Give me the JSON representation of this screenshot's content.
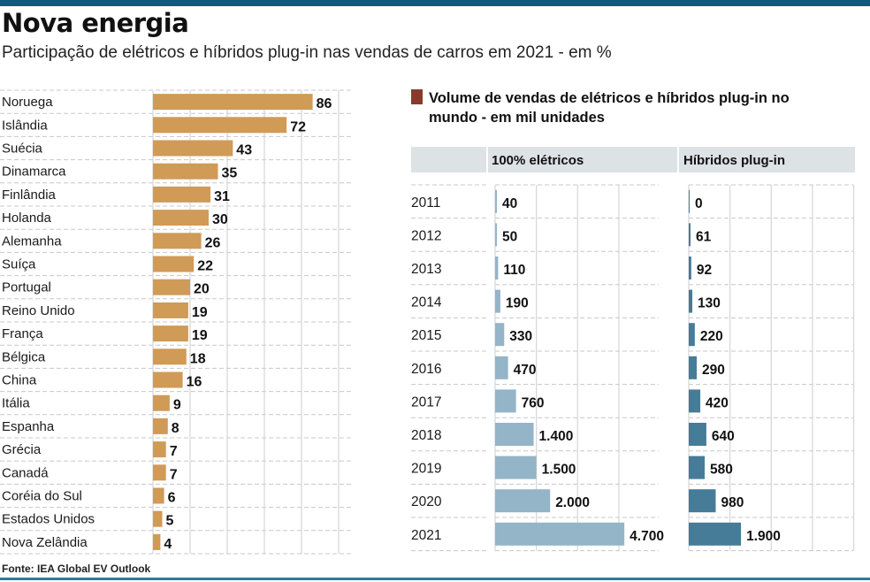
{
  "header": {
    "title": "Nova energia",
    "subtitle": "Participação de elétricos e híbridos plug-in nas vendas de carros em 2021 - em %"
  },
  "footer": {
    "source": "Fonte: IEA Global EV Outlook"
  },
  "colors": {
    "top_bar": "#0f5b78",
    "country_bar": "#d09a57",
    "electric_bar": "#94b4c8",
    "hybrid_bar": "#467c98",
    "header_bg": "#dde2e5",
    "title_marker": "#8a3a2a"
  },
  "chart_data": [
    {
      "type": "bar",
      "orientation": "horizontal",
      "title": "Participação de elétricos e híbridos plug-in nas vendas de carros em 2021 - em %",
      "categories": [
        "Noruega",
        "Islândia",
        "Suécia",
        "Dinamarca",
        "Finlândia",
        "Holanda",
        "Alemanha",
        "Suíça",
        "Portugal",
        "Reino Unido",
        "França",
        "Bélgica",
        "China",
        "Itália",
        "Espanha",
        "Grécia",
        "Canadá",
        "Coréia do Sul",
        "Estados Unidos",
        "Nova Zelândia"
      ],
      "values": [
        86,
        72,
        43,
        35,
        31,
        30,
        26,
        22,
        20,
        19,
        19,
        18,
        16,
        9,
        8,
        7,
        7,
        6,
        5,
        4
      ],
      "value_labels": [
        "86",
        "72",
        "43",
        "35",
        "31",
        "30",
        "26",
        "22",
        "20",
        "19",
        "19",
        "18",
        "16",
        "9",
        "8",
        "7",
        "7",
        "6",
        "5",
        "4"
      ],
      "xlim": [
        0,
        100
      ],
      "grid": true,
      "xlabel": "",
      "ylabel": ""
    },
    {
      "type": "bar",
      "orientation": "horizontal",
      "title": "Volume de vendas de elétricos e híbridos plug-in no mundo - em mil unidades",
      "categories": [
        "2011",
        "2012",
        "2013",
        "2014",
        "2015",
        "2016",
        "2017",
        "2018",
        "2019",
        "2020",
        "2021"
      ],
      "series": [
        {
          "name": "100% elétricos",
          "values": [
            40,
            50,
            110,
            190,
            330,
            470,
            760,
            1400,
            1500,
            2000,
            4700
          ],
          "value_labels": [
            "40",
            "50",
            "110",
            "190",
            "330",
            "470",
            "760",
            "1.400",
            "1.500",
            "2.000",
            "4.700"
          ]
        },
        {
          "name": "Híbridos plug-in",
          "values": [
            0,
            61,
            92,
            130,
            220,
            290,
            420,
            640,
            580,
            980,
            1900
          ],
          "value_labels": [
            "0",
            "61",
            "92",
            "130",
            "220",
            "290",
            "420",
            "640",
            "580",
            "980",
            "1.900"
          ]
        }
      ],
      "xlim": [
        0,
        6000
      ],
      "grid": true,
      "xlabel": "",
      "ylabel": ""
    }
  ]
}
